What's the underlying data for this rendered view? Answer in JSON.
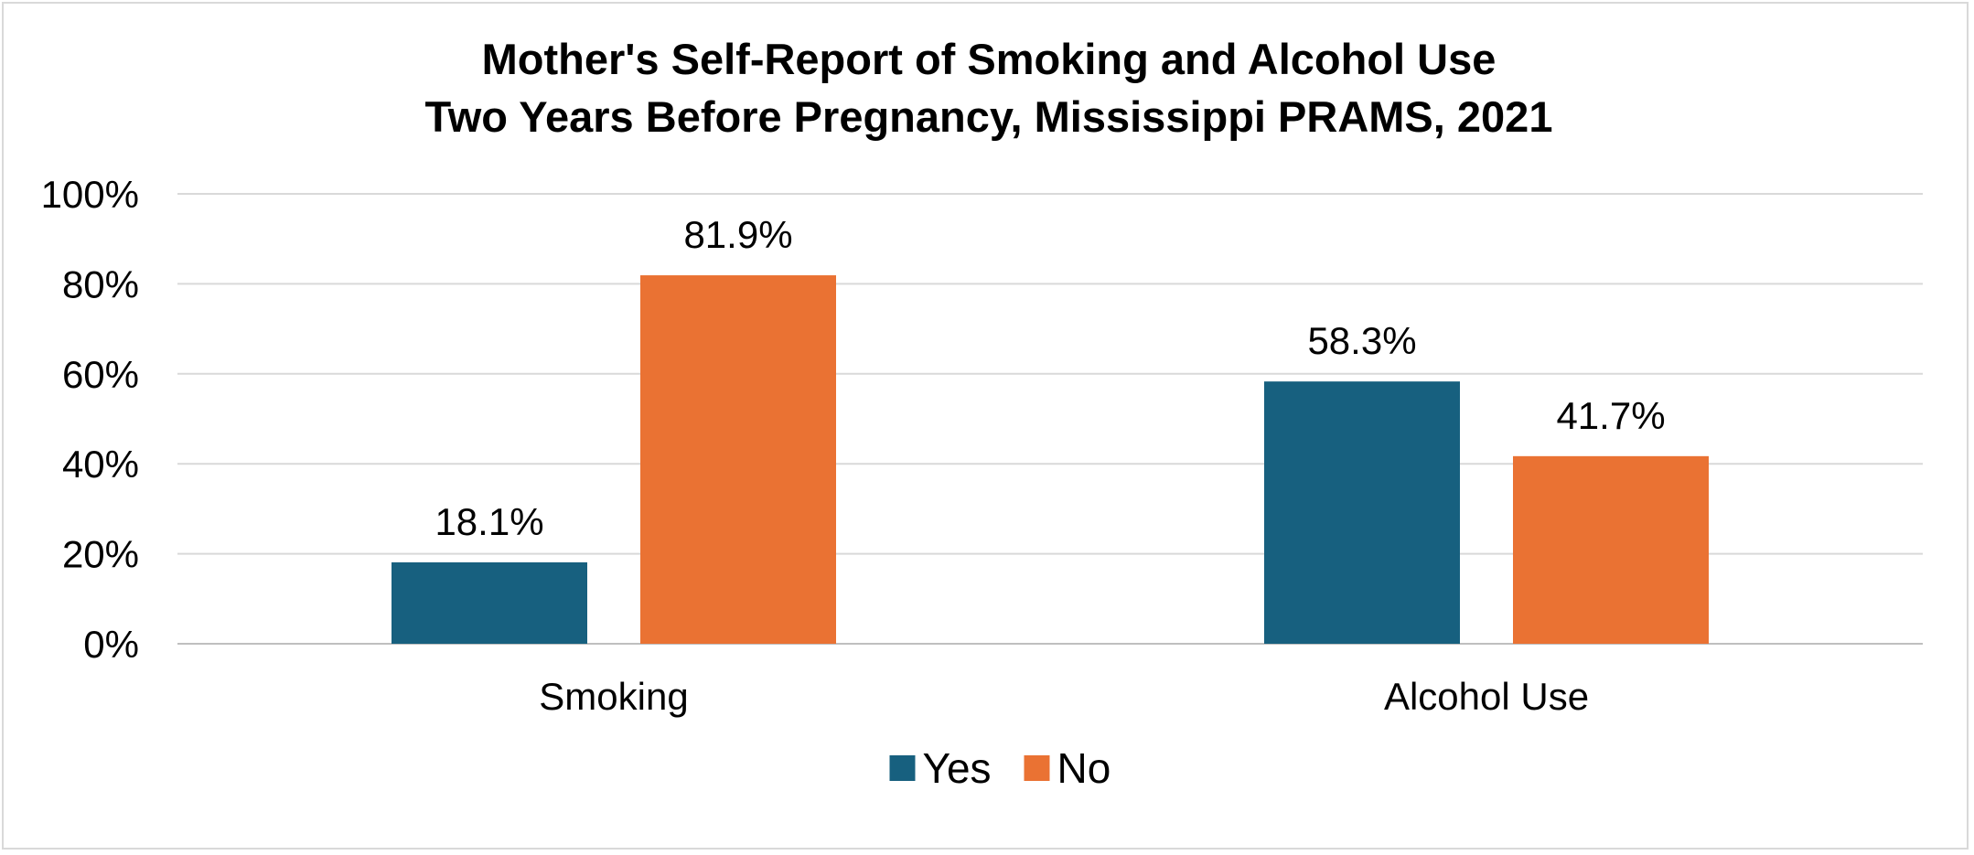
{
  "chart_data": {
    "type": "bar",
    "title": [
      "Mother's Self-Report of Smoking and Alcohol Use",
      "Two Years Before Pregnancy, Mississippi PRAMS, 2021"
    ],
    "categories": [
      "Smoking",
      "Alcohol Use"
    ],
    "series": [
      {
        "name": "Yes",
        "color": "#17607f",
        "values": [
          18.1,
          58.3
        ],
        "labels": [
          "18.1%",
          "58.3%"
        ]
      },
      {
        "name": "No",
        "color": "#ea7233",
        "values": [
          81.9,
          41.7
        ],
        "labels": [
          "81.9%",
          "41.7%"
        ]
      }
    ],
    "ylim": [
      0,
      100
    ],
    "yticks": [
      0,
      20,
      40,
      60,
      80,
      100
    ],
    "ytick_labels": [
      "0%",
      "20%",
      "40%",
      "60%",
      "80%",
      "100%"
    ],
    "grid": true,
    "legend": "bottom"
  }
}
